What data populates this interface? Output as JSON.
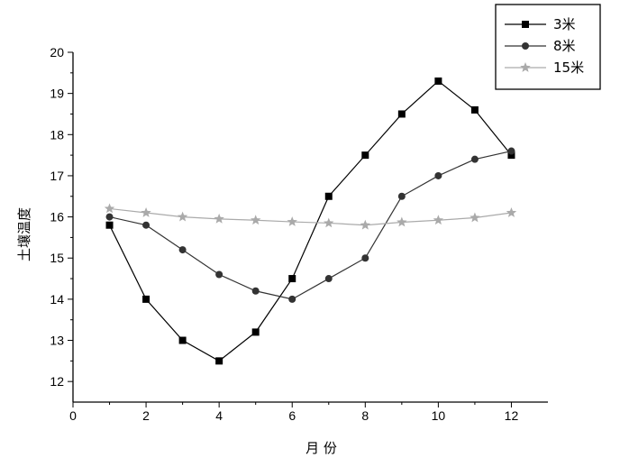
{
  "chart_data": {
    "type": "line",
    "title": "",
    "xlabel": "月 份",
    "ylabel": "土壤温度",
    "xlim": [
      0,
      13
    ],
    "ylim": [
      11.5,
      20
    ],
    "xticks": [
      0,
      2,
      4,
      6,
      8,
      10,
      12
    ],
    "yticks": [
      12,
      13,
      14,
      15,
      16,
      17,
      18,
      19,
      20
    ],
    "grid": false,
    "legend": "top-right",
    "x": [
      1,
      2,
      3,
      4,
      5,
      6,
      7,
      8,
      9,
      10,
      11,
      12
    ],
    "series": [
      {
        "name": "3米",
        "marker": "square",
        "color": "#000000",
        "values": [
          15.8,
          14.0,
          13.0,
          12.5,
          13.2,
          14.5,
          16.5,
          17.5,
          18.5,
          19.3,
          18.6,
          17.5
        ]
      },
      {
        "name": "8米",
        "marker": "circle",
        "color": "#333333",
        "values": [
          16.0,
          15.8,
          15.2,
          14.6,
          14.2,
          14.0,
          14.5,
          15.0,
          16.5,
          17.0,
          17.4,
          17.6
        ]
      },
      {
        "name": "15米",
        "marker": "star",
        "color": "#aaaaaa",
        "values": [
          16.2,
          16.1,
          16.0,
          15.95,
          15.92,
          15.88,
          15.85,
          15.8,
          15.87,
          15.92,
          15.98,
          16.1
        ]
      }
    ]
  }
}
